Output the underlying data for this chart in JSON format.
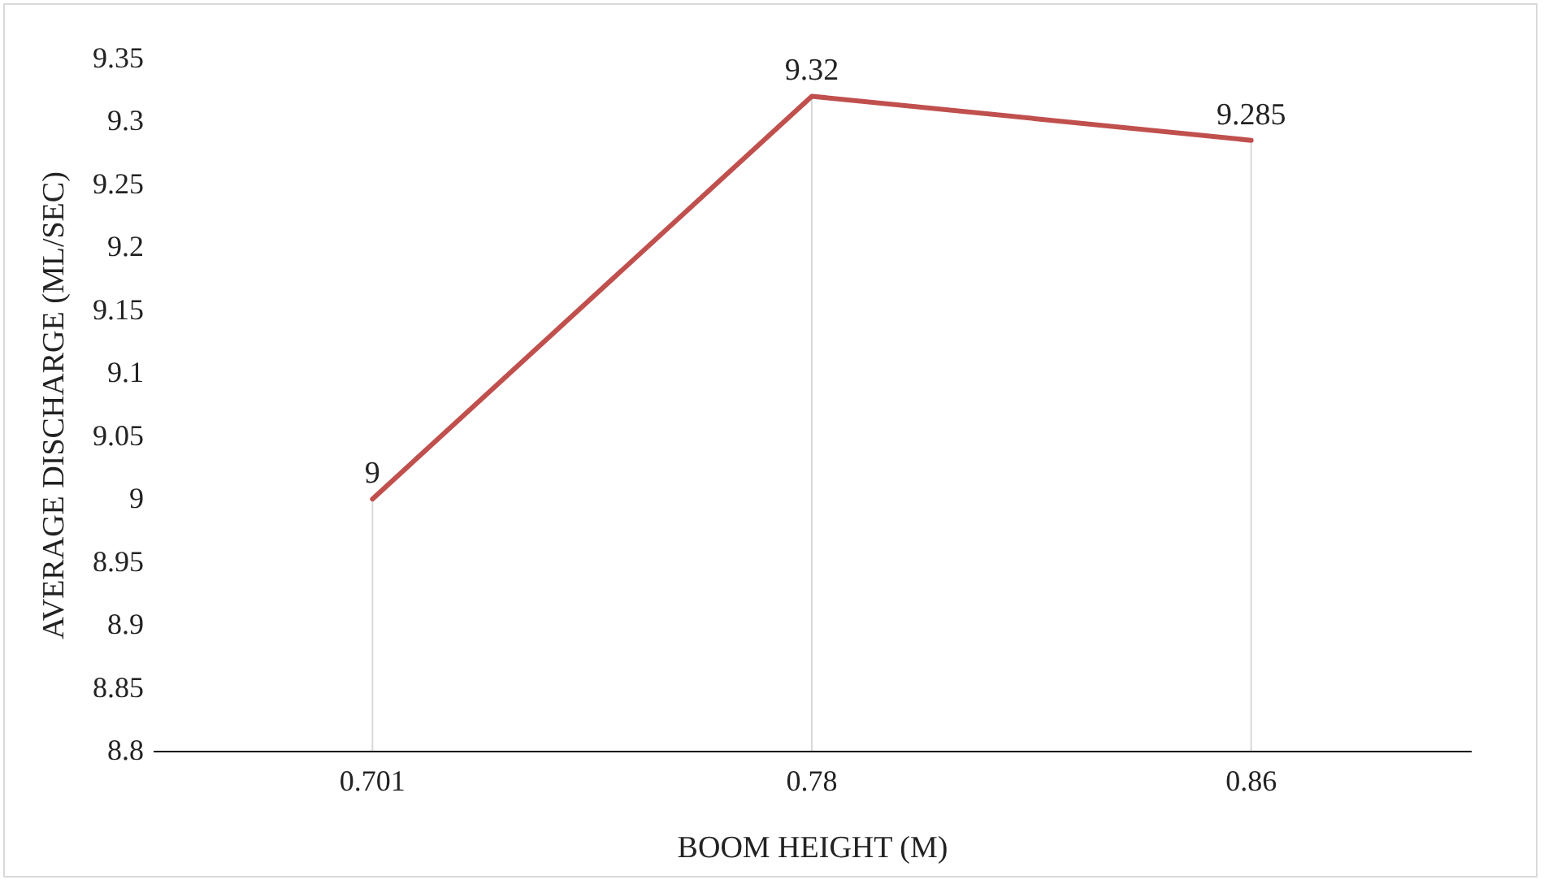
{
  "chart_data": {
    "type": "line",
    "xlabel": "BOOM HEIGHT (M)",
    "ylabel": "AVERAGE DISCHARGE (ML/SEC)",
    "categories": [
      "0.701",
      "0.78",
      "0.86"
    ],
    "series": [
      {
        "color": "#c0504d",
        "values": [
          9,
          9.32,
          9.285
        ]
      }
    ],
    "ylim": [
      8.8,
      9.35
    ],
    "yticks": [
      8.8,
      8.85,
      8.9,
      8.95,
      9,
      9.05,
      9.1,
      9.15,
      9.2,
      9.25,
      9.3,
      9.35
    ],
    "grid": "x",
    "data_labels": true,
    "marker": "none",
    "line_style": "solid",
    "legend": false
  }
}
